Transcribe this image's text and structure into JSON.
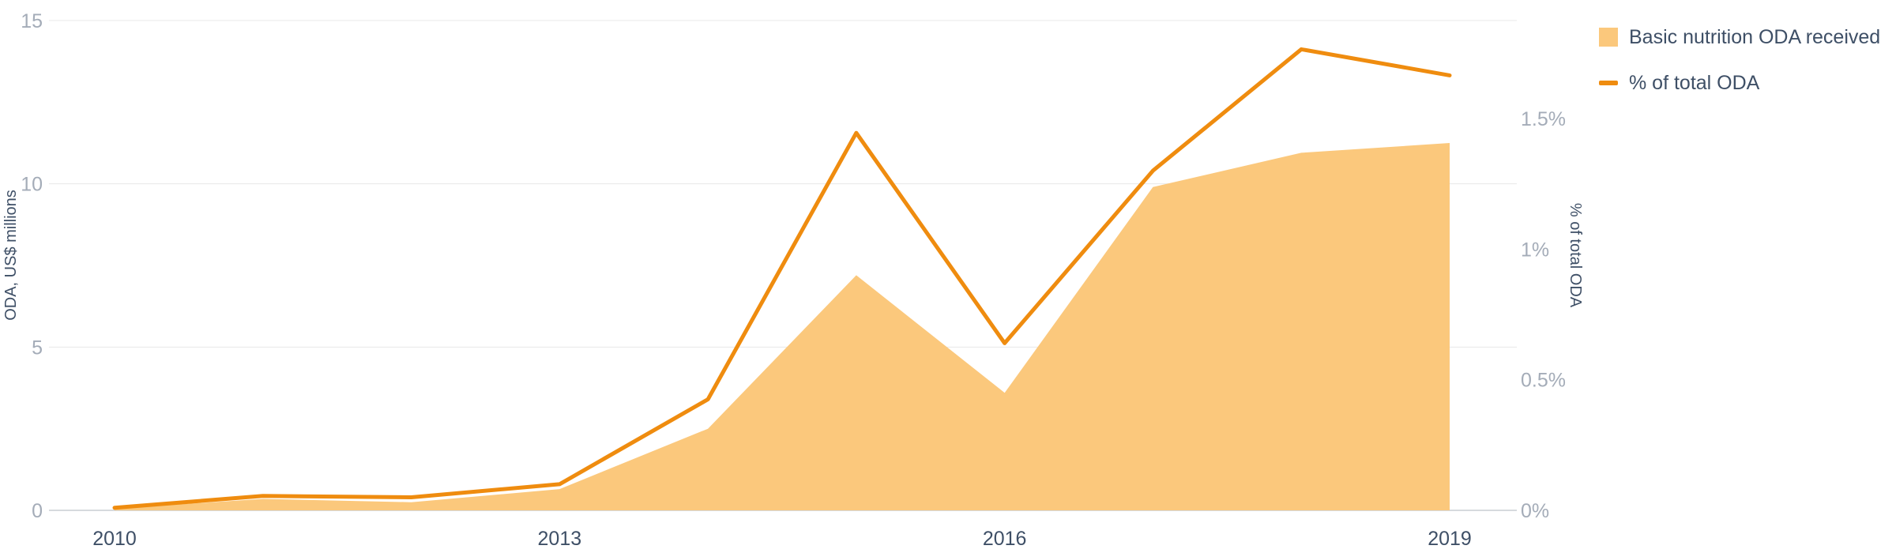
{
  "chart_data": {
    "type": "area",
    "x": [
      2010,
      2011,
      2012,
      2013,
      2014,
      2015,
      2016,
      2017,
      2018,
      2019
    ],
    "x_tick_labels": [
      "2010",
      "2013",
      "2016",
      "2019"
    ],
    "ylabel": "ODA, US$ millions",
    "ylim": [
      0,
      15
    ],
    "y_tick_labels": [
      "0",
      "5",
      "10",
      "15"
    ],
    "y2label": "% of total ODA",
    "y2lim": [
      0,
      1.875
    ],
    "y2_tick_labels": [
      "0%",
      "0.5%",
      "1%",
      "1.5%"
    ],
    "series": [
      {
        "name": "Basic nutrition ODA received",
        "type": "area",
        "axis": "left",
        "color": "#fbc87c",
        "values": [
          0.05,
          0.35,
          0.25,
          0.65,
          2.5,
          7.2,
          3.6,
          9.9,
          10.95,
          11.25
        ]
      },
      {
        "name": "% of total ODA",
        "type": "line",
        "axis": "right",
        "color": "#ef8c0f",
        "values": [
          0.01,
          0.055,
          0.05,
          0.1,
          0.425,
          1.445,
          0.64,
          1.3,
          1.765,
          1.665
        ]
      }
    ],
    "grid": true,
    "legend_position": "top-right"
  }
}
